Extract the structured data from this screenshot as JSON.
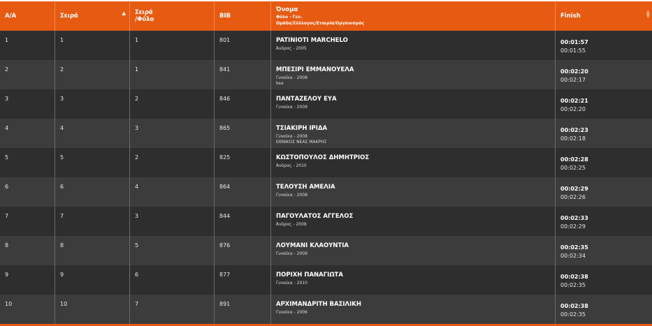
{
  "colors": {
    "header": "#e65a12",
    "row_dark": "#2e2e2e",
    "row_light": "#3c3c3c"
  },
  "header": {
    "aa": "Α/Α",
    "seira": "Σειρά",
    "seira_fylo_1": "Σειρά",
    "seira_fylo_2": "/Φύλο",
    "bib": "BIB",
    "onoma": "Όνομα",
    "onoma_sub1": "Φύλο - Γεν.",
    "onoma_sub2": "Ομάδα/Σύλλογος/Εταιρία/Οργανισμός",
    "finish": "Finish",
    "sort_icon": "sort-asc-icon",
    "sort_both_icon": "sort-both-icon"
  },
  "rows": [
    {
      "aa": "1",
      "seira": "1",
      "fylo": "1",
      "bib": "801",
      "name": "PATINIOTI MARCHELO",
      "info": "Άνδρας - 2005",
      "club": "",
      "t1": "00:01:57",
      "t2": "00:01:55"
    },
    {
      "aa": "2",
      "seira": "2",
      "fylo": "1",
      "bib": "841",
      "name": "ΜΠΕΣΙΡΙ ΕΜΜΑΝΟΥΕΛΑ",
      "info": "Γυναίκα - 2008",
      "club": "kea",
      "t1": "00:02:20",
      "t2": "00:02:17"
    },
    {
      "aa": "3",
      "seira": "3",
      "fylo": "2",
      "bib": "846",
      "name": "ΠΑΝΤΑΖΕΛΟΥ ΕΥΑ",
      "info": "Γυναίκα - 2009",
      "club": "",
      "t1": "00:02:21",
      "t2": "00:02:20"
    },
    {
      "aa": "4",
      "seira": "4",
      "fylo": "3",
      "bib": "865",
      "name": "ΤΣΙΑΚΙΡΗ ΙΡΙΔΑ",
      "info": "Γυναίκα - 2008",
      "club": "ΕΘΝΙΚΟΣ ΝΕΑΣ ΜΑΚΡΗΣ",
      "t1": "00:02:23",
      "t2": "00:02:18"
    },
    {
      "aa": "5",
      "seira": "5",
      "fylo": "2",
      "bib": "825",
      "name": "ΚΩΣΤΟΠΟΥΛΟΣ ΔΗΜΗΤΡΙΟΣ",
      "info": "Άνδρας - 2010",
      "club": "",
      "t1": "00:02:28",
      "t2": "00:02:25"
    },
    {
      "aa": "6",
      "seira": "6",
      "fylo": "4",
      "bib": "864",
      "name": "ΤΕΛΟΥΣΗ ΑΜΕΛΙΑ",
      "info": "Γυναίκα - 2008",
      "club": "",
      "t1": "00:02:29",
      "t2": "00:02:26"
    },
    {
      "aa": "7",
      "seira": "7",
      "fylo": "3",
      "bib": "844",
      "name": "ΠΑΓΟΥΛΑΤΟΣ ΑΓΓΕΛΟΣ",
      "info": "Άνδρας - 2008",
      "club": "",
      "t1": "00:02:33",
      "t2": "00:02:29"
    },
    {
      "aa": "8",
      "seira": "8",
      "fylo": "5",
      "bib": "876",
      "name": "ΛΟΥΜΑΝΙ ΚΛΑΟΥΝΤΙΑ",
      "info": "Γυναίκα - 2009",
      "club": "",
      "t1": "00:02:35",
      "t2": "00:02:34"
    },
    {
      "aa": "9",
      "seira": "9",
      "fylo": "6",
      "bib": "877",
      "name": "ΠΟΡΙΧΗ ΠΑΝΑΓΙΩΤΑ",
      "info": "Γυναίκα - 2010",
      "club": "",
      "t1": "00:02:38",
      "t2": "00:02:35"
    },
    {
      "aa": "10",
      "seira": "10",
      "fylo": "7",
      "bib": "891",
      "name": "ΑΡΧΙΜΑΝΔΡΙΤΗ ΒΑΣΙΛΙΚΗ",
      "info": "Γυναίκα - 2006",
      "club": "",
      "t1": "00:02:38",
      "t2": "00:02:35"
    }
  ]
}
